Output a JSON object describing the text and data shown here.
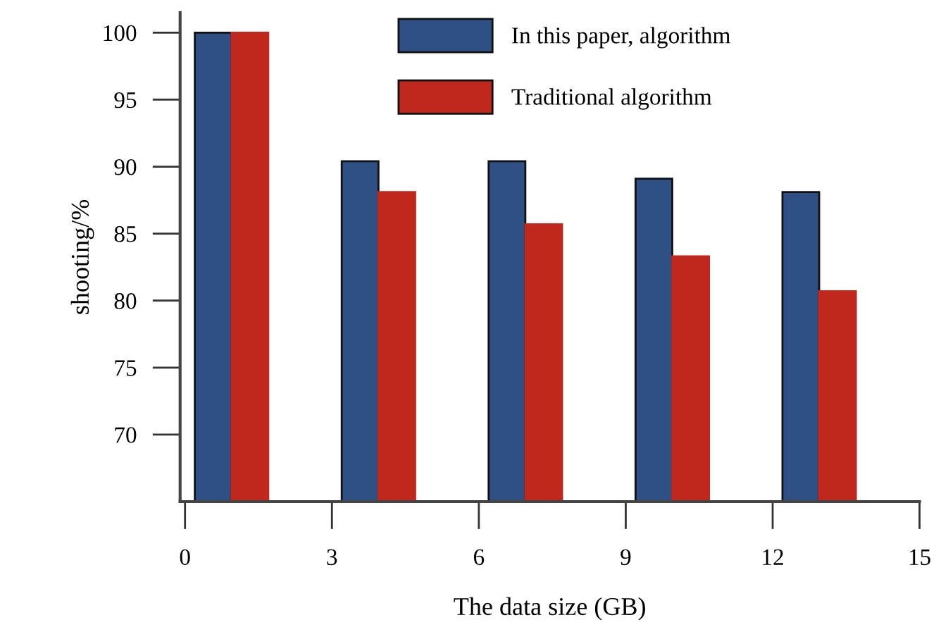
{
  "chart_data": {
    "type": "bar",
    "xlabel": "The data size (GB)",
    "ylabel": "shooting/%",
    "x": [
      0,
      3,
      6,
      9,
      12
    ],
    "series": [
      {
        "name": "In this paper, algorithm",
        "color": "#2f5085",
        "values": [
          100,
          90.4,
          90.4,
          89.1,
          88.1
        ]
      },
      {
        "name": "Traditional algorithm",
        "color": "#c0281e",
        "values": [
          100,
          88.1,
          85.7,
          83.3,
          80.7
        ]
      }
    ],
    "xlim": [
      -0.1,
      15
    ],
    "xticks": [
      0,
      3,
      6,
      9,
      12,
      15
    ],
    "ylim": [
      65,
      101.5
    ],
    "yticks": [
      70,
      75,
      80,
      85,
      90,
      95,
      100
    ],
    "grid": false,
    "legend": "top"
  }
}
